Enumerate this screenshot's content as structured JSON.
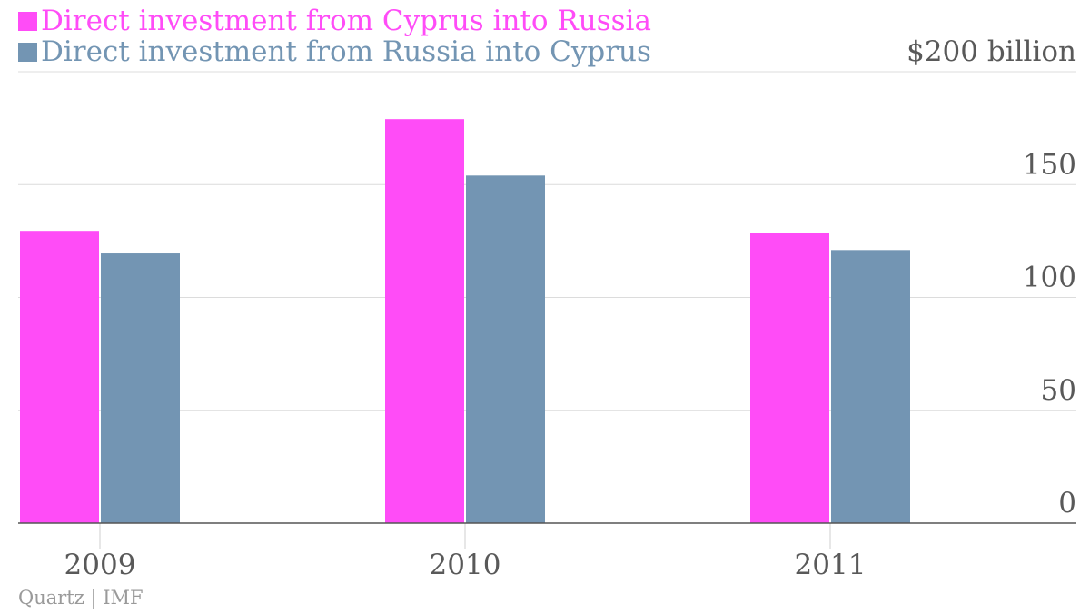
{
  "legend": [
    {
      "label": "Direct investment from Cyprus into Russia",
      "color": "#ff4cf7"
    },
    {
      "label": "Direct investment from Russia into Cyprus",
      "color": "#7395b3"
    }
  ],
  "source": "Quartz | IMF",
  "chart_data": {
    "type": "bar",
    "categories": [
      "2009",
      "2010",
      "2011"
    ],
    "series": [
      {
        "name": "Direct investment from Cyprus into Russia",
        "color": "#ff4cf7",
        "values": [
          129.5,
          179,
          128.5
        ]
      },
      {
        "name": "Direct investment from Russia into Cyprus",
        "color": "#7395b3",
        "values": [
          119.5,
          154,
          121
        ]
      }
    ],
    "ylim": [
      0,
      200
    ],
    "y_ticks": [
      0,
      50,
      100,
      150,
      200
    ],
    "y_tick_labels": [
      "0",
      "50",
      "100",
      "150",
      "$200 billion"
    ],
    "y_axis_position": "right",
    "grid": true,
    "legend_position": "top-left"
  }
}
